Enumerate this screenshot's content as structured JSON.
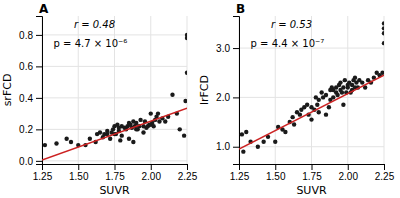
{
  "chart_data": [
    {
      "type": "scatter",
      "title": "A",
      "annotations": [
        "r = 0.48",
        "p = 4.7 × 10⁻⁶"
      ],
      "x_label": "SUVR",
      "y_label": "srFCD",
      "xlim": [
        1.25,
        2.25
      ],
      "ylim": [
        -0.02,
        0.92
      ],
      "xticks": [
        1.25,
        {
          "value": 1.5,
          "label": "1.50"
        },
        1.75,
        {
          "value": 2.0,
          "label": "2.00"
        },
        2.25
      ],
      "yticks": [
        {
          "value": 0.0,
          "label": "0.0"
        },
        0.2,
        0.4,
        0.6,
        0.8
      ],
      "grid": true,
      "series": [
        {
          "type": "scatter",
          "color": "#1a1a1a",
          "x": [
            1.27,
            1.35,
            1.42,
            1.45,
            1.5,
            1.55,
            1.58,
            1.62,
            1.63,
            1.65,
            1.67,
            1.68,
            1.7,
            1.7,
            1.72,
            1.73,
            1.74,
            1.75,
            1.75,
            1.76,
            1.77,
            1.78,
            1.78,
            1.79,
            1.8,
            1.8,
            1.82,
            1.83,
            1.84,
            1.85,
            1.85,
            1.86,
            1.87,
            1.88,
            1.88,
            1.89,
            1.9,
            1.9,
            1.91,
            1.92,
            1.93,
            1.95,
            1.95,
            1.96,
            1.97,
            1.98,
            1.99,
            2.0,
            2.0,
            2.01,
            2.02,
            2.03,
            2.04,
            2.05,
            2.06,
            2.08,
            2.1,
            2.12,
            2.15,
            2.18,
            2.2,
            2.23,
            2.24,
            2.25,
            2.25,
            2.25
          ],
          "values": [
            0.1,
            0.11,
            0.14,
            0.12,
            0.1,
            0.1,
            0.14,
            0.12,
            0.17,
            0.18,
            0.15,
            0.17,
            0.17,
            0.19,
            0.14,
            0.18,
            0.2,
            0.22,
            0.17,
            0.17,
            0.23,
            0.21,
            0.19,
            0.13,
            0.22,
            0.16,
            0.21,
            0.2,
            0.22,
            0.24,
            0.14,
            0.23,
            0.21,
            0.25,
            0.12,
            0.22,
            0.2,
            0.24,
            0.2,
            0.22,
            0.26,
            0.22,
            0.18,
            0.25,
            0.21,
            0.22,
            0.23,
            0.23,
            0.3,
            0.24,
            0.22,
            0.26,
            0.28,
            0.3,
            0.25,
            0.27,
            0.25,
            0.28,
            0.42,
            0.3,
            0.2,
            0.16,
            0.38,
            0.56,
            0.78,
            0.8
          ]
        },
        {
          "type": "line",
          "color": "#cc2222",
          "x": [
            1.25,
            2.25
          ],
          "values": [
            0.005,
            0.335
          ]
        }
      ]
    },
    {
      "type": "scatter",
      "title": "B",
      "annotations": [
        "r = 0.53",
        "p = 4.4 × 10⁻⁷"
      ],
      "x_label": "SUVR",
      "y_label": "lrFCD",
      "xlim": [
        1.25,
        2.25
      ],
      "ylim": [
        0.65,
        3.65
      ],
      "xticks": [
        1.25,
        {
          "value": 1.5,
          "label": "1.50"
        },
        1.75,
        {
          "value": 2.0,
          "label": "2.00"
        },
        2.25
      ],
      "yticks": [
        {
          "value": 1.0,
          "label": "1.0"
        },
        {
          "value": 2.0,
          "label": "2.0"
        },
        {
          "value": 3.0,
          "label": "3.0"
        }
      ],
      "grid": true,
      "series": [
        {
          "type": "scatter",
          "color": "#1a1a1a",
          "x": [
            1.27,
            1.28,
            1.3,
            1.33,
            1.38,
            1.42,
            1.45,
            1.5,
            1.52,
            1.55,
            1.57,
            1.6,
            1.62,
            1.63,
            1.65,
            1.67,
            1.68,
            1.7,
            1.72,
            1.73,
            1.75,
            1.75,
            1.77,
            1.78,
            1.79,
            1.8,
            1.8,
            1.82,
            1.83,
            1.85,
            1.85,
            1.87,
            1.88,
            1.88,
            1.89,
            1.9,
            1.9,
            1.92,
            1.92,
            1.93,
            1.94,
            1.95,
            1.95,
            1.96,
            1.97,
            1.97,
            1.98,
            1.99,
            2.0,
            2.0,
            2.01,
            2.02,
            2.03,
            2.03,
            2.04,
            2.05,
            2.05,
            2.06,
            2.07,
            2.08,
            2.1,
            2.12,
            2.14,
            2.16,
            2.18,
            2.2,
            2.22,
            2.24,
            2.25,
            2.25,
            2.25,
            2.25
          ],
          "values": [
            1.25,
            0.9,
            1.3,
            1.1,
            1.0,
            1.1,
            1.2,
            1.1,
            1.4,
            1.35,
            1.3,
            1.5,
            1.6,
            1.45,
            1.7,
            1.65,
            1.75,
            1.8,
            1.85,
            1.65,
            1.8,
            1.55,
            1.75,
            2.0,
            1.85,
            1.95,
            1.7,
            2.1,
            2.0,
            2.05,
            1.65,
            1.8,
            2.15,
            1.95,
            2.2,
            2.0,
            2.15,
            2.1,
            2.2,
            2.05,
            2.25,
            2.3,
            2.15,
            2.1,
            2.2,
            1.85,
            2.35,
            2.1,
            2.25,
            2.2,
            2.3,
            2.1,
            2.25,
            2.15,
            2.35,
            2.2,
            2.4,
            2.3,
            2.2,
            2.35,
            2.3,
            2.2,
            2.35,
            2.3,
            2.4,
            2.5,
            2.45,
            2.5,
            3.1,
            3.4,
            3.5,
            3.3
          ]
        },
        {
          "type": "line",
          "color": "#cc2222",
          "x": [
            1.25,
            2.25
          ],
          "values": [
            0.95,
            2.45
          ]
        }
      ]
    }
  ]
}
